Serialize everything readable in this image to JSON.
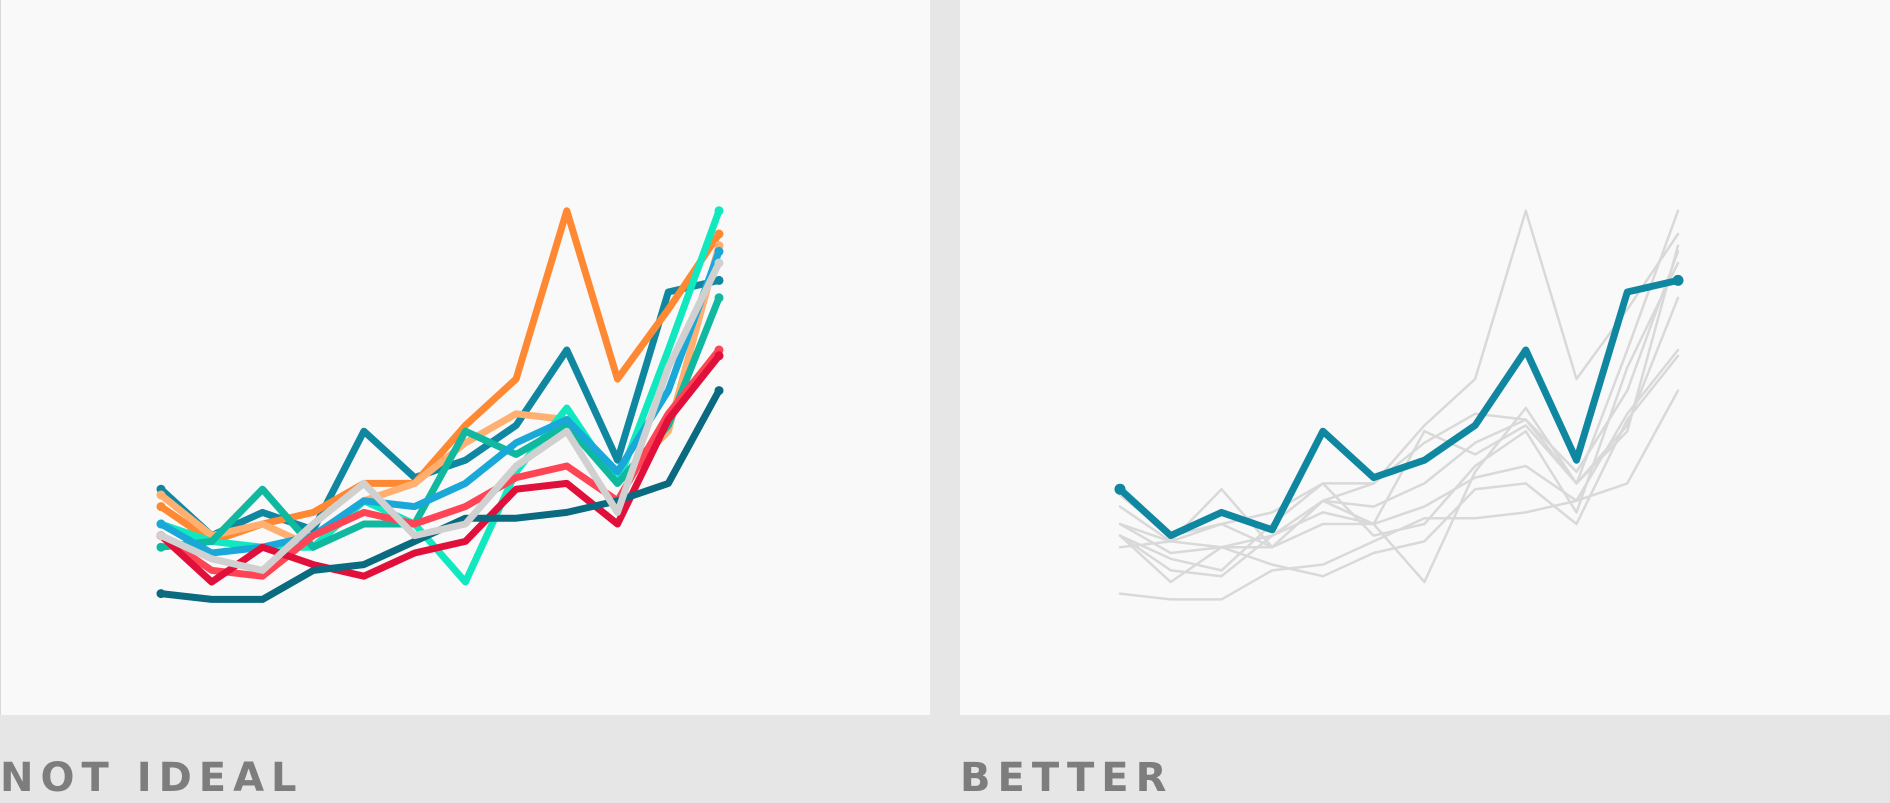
{
  "captions": {
    "left": "NOT IDEAL",
    "right": "BETTER"
  },
  "highlight_series_index": 0,
  "muted_color": "#d9d9d9",
  "chart_data": [
    {
      "type": "line",
      "title": "",
      "xlabel": "",
      "ylabel": "",
      "grid": false,
      "legend": "none",
      "x": [
        1,
        2,
        3,
        4,
        5,
        6,
        7,
        8,
        9,
        10,
        11,
        12
      ],
      "ylim": [
        0,
        100
      ],
      "series": [
        {
          "color": "#0f87a0",
          "values": [
            26,
            18,
            22,
            19,
            36,
            28,
            31,
            37,
            50,
            31,
            60,
            62
          ]
        },
        {
          "color": "#ff8833",
          "values": [
            23,
            17,
            20,
            22,
            27,
            27,
            37,
            45,
            74,
            45,
            57,
            70
          ]
        },
        {
          "color": "#ffb070",
          "values": [
            25,
            18,
            20,
            16,
            24,
            27,
            34,
            39,
            38,
            27,
            36,
            68
          ]
        },
        {
          "color": "#10e8c0",
          "values": [
            20,
            17,
            16,
            16,
            24,
            20,
            10,
            29,
            40,
            27,
            50,
            74
          ]
        },
        {
          "color": "#10b8a0",
          "values": [
            16,
            17,
            26,
            16,
            20,
            20,
            36,
            32,
            37,
            27,
            37,
            59
          ]
        },
        {
          "color": "#1aa8d8",
          "values": [
            20,
            15,
            16,
            18,
            24,
            23,
            27,
            34,
            38,
            29,
            43,
            67
          ]
        },
        {
          "color": "#ff4455",
          "values": [
            18,
            12,
            11,
            18,
            22,
            20,
            23,
            28,
            30,
            24,
            39,
            50
          ]
        },
        {
          "color": "#e0103a",
          "values": [
            18,
            10,
            16,
            13,
            11,
            15,
            17,
            26,
            27,
            20,
            38,
            49
          ]
        },
        {
          "color": "#0a6a80",
          "values": [
            8,
            7,
            7,
            12,
            13,
            17,
            21,
            21,
            22,
            24,
            27,
            43
          ]
        },
        {
          "color": "#d0d0d0",
          "values": [
            18,
            14,
            12,
            20,
            27,
            18,
            20,
            30,
            36,
            22,
            47,
            65
          ]
        }
      ]
    }
  ]
}
